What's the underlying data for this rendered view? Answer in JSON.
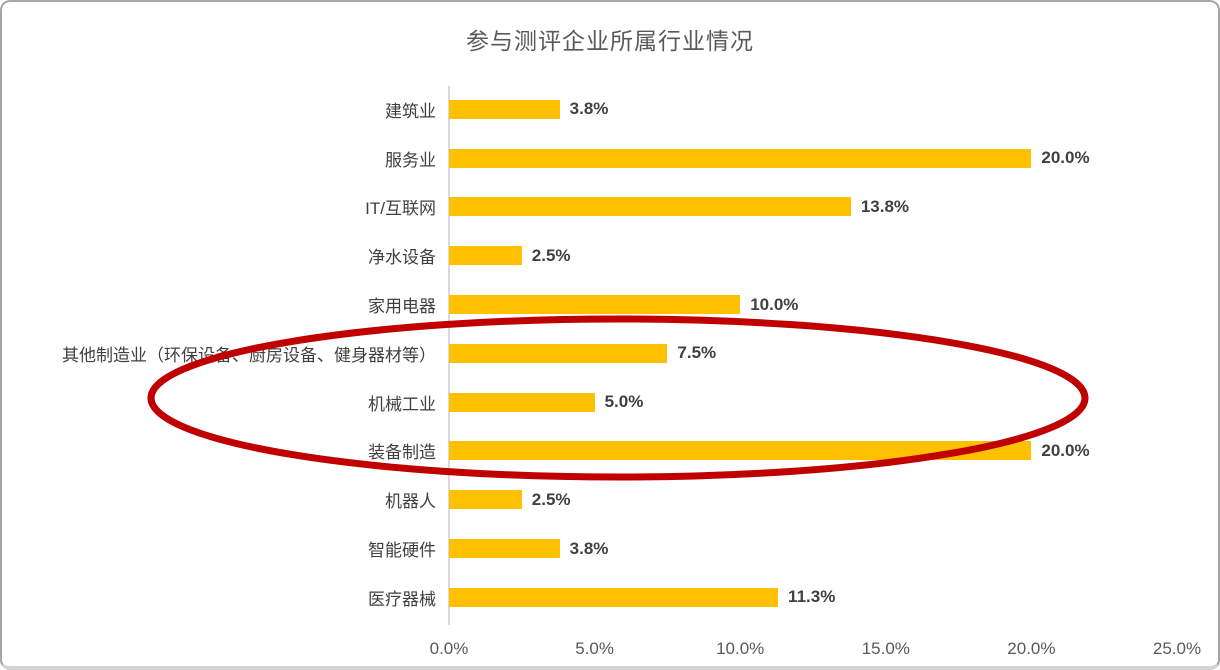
{
  "chart_data": {
    "type": "bar",
    "orientation": "horizontal",
    "title": "参与测评企业所属行业情况",
    "categories": [
      "建筑业",
      "服务业",
      "IT/互联网",
      "净水设备",
      "家用电器",
      "其他制造业（环保设备、厨房设备、健身器材等）",
      "机械工业",
      "装备制造",
      "机器人",
      "智能硬件",
      "医疗器械"
    ],
    "values": [
      3.8,
      20.0,
      13.8,
      2.5,
      10.0,
      7.5,
      5.0,
      20.0,
      2.5,
      3.8,
      11.3
    ],
    "value_labels": [
      "3.8%",
      "20.0%",
      "13.8%",
      "2.5%",
      "10.0%",
      "7.5%",
      "5.0%",
      "20.0%",
      "2.5%",
      "3.8%",
      "11.3%"
    ],
    "x_ticks": [
      "0.0%",
      "5.0%",
      "10.0%",
      "15.0%",
      "20.0%",
      "25.0%"
    ],
    "xlim": [
      0,
      25
    ],
    "xlabel": "",
    "ylabel": "",
    "grid": false,
    "legend": false,
    "bar_color": "#FFC000"
  },
  "annotation": {
    "shape": "ellipse",
    "color": "#C00000",
    "circled_categories": [
      "其他制造业（环保设备、厨房设备、健身器材等）",
      "机械工业",
      "装备制造"
    ]
  },
  "colors": {
    "title_text": "#595959",
    "category_text": "#404040",
    "value_text": "#404040",
    "tick_text": "#595959",
    "axis_line": "#D9D9D9",
    "frame_border": "#A6A6A6",
    "background": "#FFFFFF"
  }
}
